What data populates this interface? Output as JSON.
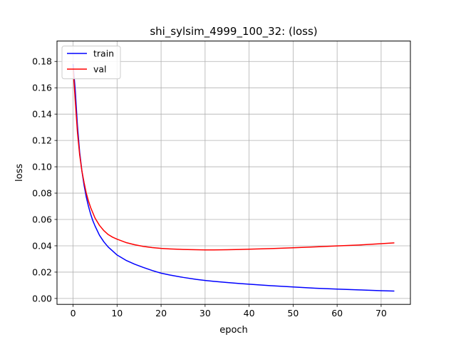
{
  "chart_data": {
    "type": "line",
    "title": "shi_sylsim_4999_100_32: (loss)",
    "xlabel": "epoch",
    "ylabel": "loss",
    "xlim": [
      -3.65,
      76.65
    ],
    "ylim": [
      -0.0045,
      0.1955
    ],
    "xticks": [
      0,
      10,
      20,
      30,
      40,
      50,
      60,
      70
    ],
    "xtick_labels": [
      "0",
      "10",
      "20",
      "30",
      "40",
      "50",
      "60",
      "70"
    ],
    "yticks": [
      0.0,
      0.02,
      0.04,
      0.06,
      0.08,
      0.1,
      0.12,
      0.14,
      0.16,
      0.18
    ],
    "ytick_labels": [
      "0.00",
      "0.02",
      "0.04",
      "0.06",
      "0.08",
      "0.10",
      "0.12",
      "0.14",
      "0.16",
      "0.18"
    ],
    "grid": true,
    "legend_position": "top-left",
    "x": [
      0,
      0.5,
      1,
      1.5,
      2,
      2.5,
      3,
      3.5,
      4,
      4.5,
      5,
      6,
      7,
      8,
      9,
      10,
      12,
      14,
      16,
      18,
      20,
      22,
      25,
      28,
      30,
      32,
      35,
      38,
      40,
      45,
      50,
      55,
      60,
      65,
      70,
      73
    ],
    "series": [
      {
        "name": "train",
        "color": "#0000ff",
        "values": [
          0.178,
          0.158,
          0.131,
          0.111,
          0.097,
          0.086,
          0.077,
          0.07,
          0.064,
          0.059,
          0.055,
          0.048,
          0.043,
          0.039,
          0.036,
          0.033,
          0.029,
          0.026,
          0.0235,
          0.0212,
          0.0192,
          0.0178,
          0.016,
          0.0145,
          0.0137,
          0.013,
          0.0121,
          0.0113,
          0.0108,
          0.0097,
          0.0087,
          0.0078,
          0.0071,
          0.0065,
          0.0059,
          0.0056
        ]
      },
      {
        "name": "val",
        "color": "#ff0000",
        "values": [
          0.175,
          0.15,
          0.126,
          0.109,
          0.097,
          0.088,
          0.08,
          0.074,
          0.069,
          0.065,
          0.061,
          0.0555,
          0.0515,
          0.0485,
          0.0465,
          0.045,
          0.0425,
          0.0408,
          0.0395,
          0.0386,
          0.038,
          0.0376,
          0.0372,
          0.037,
          0.0369,
          0.0369,
          0.037,
          0.0372,
          0.0374,
          0.0379,
          0.0385,
          0.0392,
          0.0399,
          0.0406,
          0.0416,
          0.0422
        ]
      }
    ]
  }
}
